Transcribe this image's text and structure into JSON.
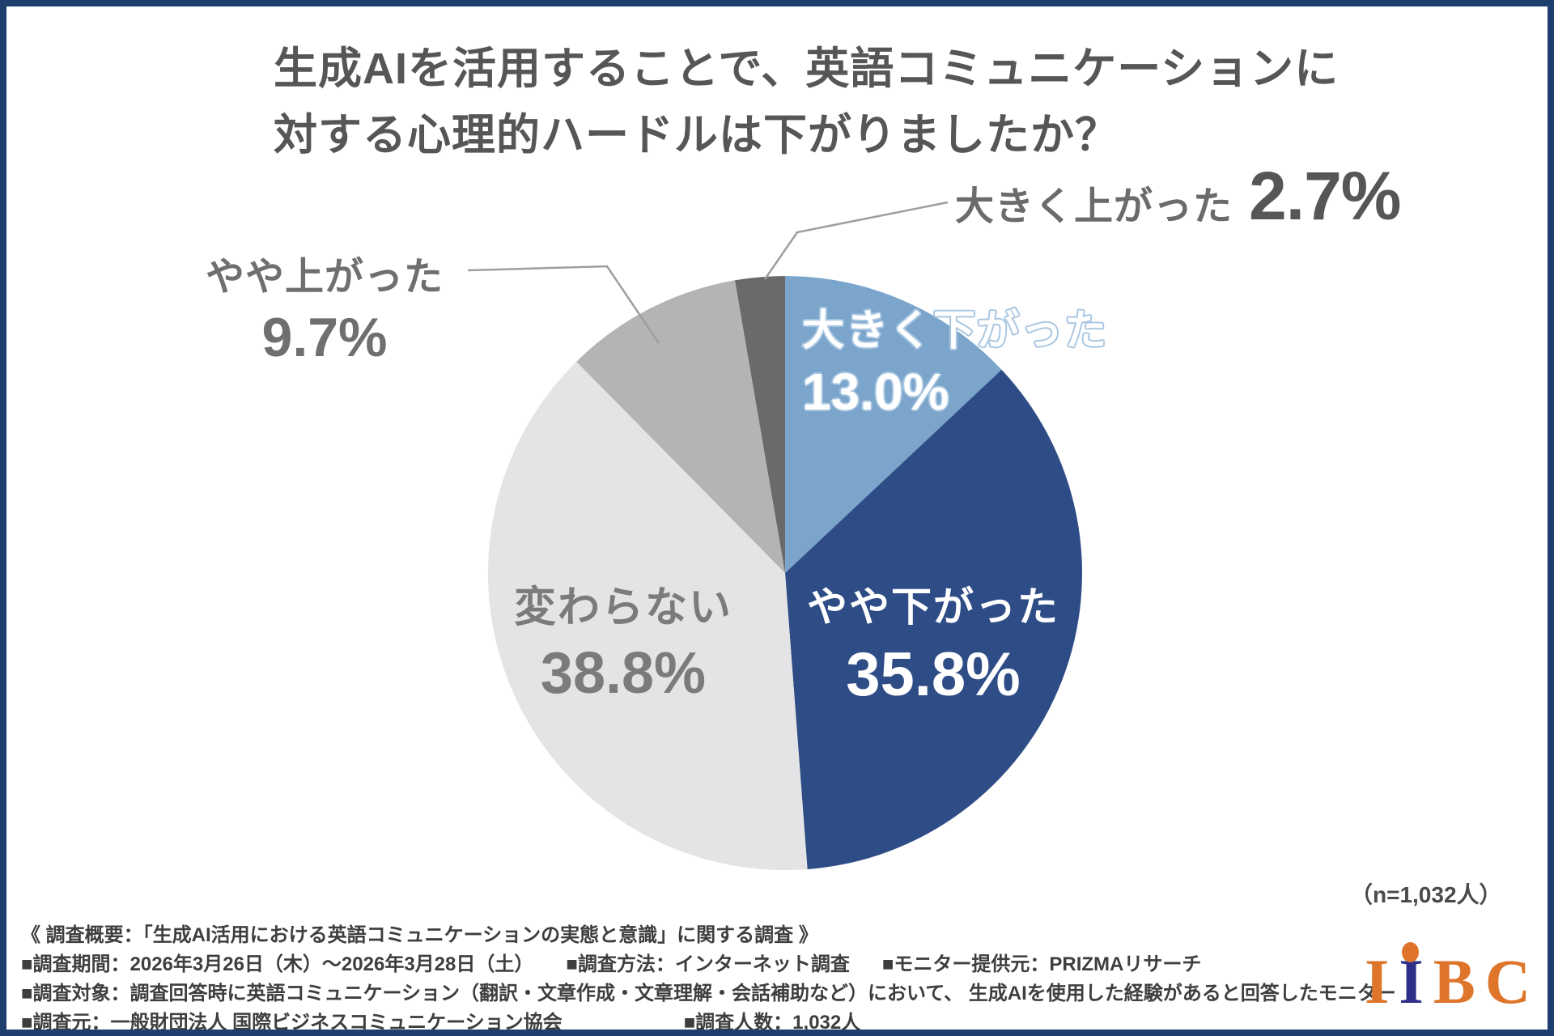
{
  "title": {
    "line1": "生成AIを活用することで、英語コミュニケーションに",
    "line2": "対する心理的ハードルは下がりましたか？"
  },
  "chart_data": {
    "type": "pie",
    "title": "生成AIを活用することで、英語コミュニケーションに対する心理的ハードルは下がりましたか？",
    "sample_note": "（n=1,032人）",
    "start_angle_deg": 0,
    "direction": "clockwise",
    "slices": [
      {
        "label": "大きく下がった",
        "value": 13.0,
        "display": "13.0%",
        "color": "#7BA5CB"
      },
      {
        "label": "やや下がった",
        "value": 35.8,
        "display": "35.8%",
        "color": "#2E4C86"
      },
      {
        "label": "変わらない",
        "value": 38.8,
        "display": "38.8%",
        "color": "#E4E4E6"
      },
      {
        "label": "やや上がった",
        "value": 9.7,
        "display": "9.7%",
        "color": "#B4B4B4"
      },
      {
        "label": "大きく上がった",
        "value": 2.7,
        "display": "2.7%",
        "color": "#6A6A6A"
      }
    ]
  },
  "footer": {
    "line1": "《 調査概要：「生成AI活用における英語コミュニケーションの実態と意識」に関する調査 》",
    "line2": [
      "■調査期間：2026年3月26日（木）～2026年3月28日（土）",
      "■調査方法：インターネット調査",
      "■モニター提供元：PRIZMAリサーチ"
    ],
    "line3": "■調査対象：調査回答時に英語コミュニケーション（翻訳・文章作成・文章理解・会話補助など）において、 生成AIを使用した経験があると回答したモニター",
    "line4": [
      "■調査元：一般財団法人 国際ビジネスコミュニケーション協会",
      "■調査人数：1,032人"
    ]
  },
  "logo": {
    "letters": [
      {
        "char": "I",
        "color": "#DE752B"
      },
      {
        "char": "I",
        "color": "#2D2E87"
      },
      {
        "char": "B",
        "color": "#DE752B"
      },
      {
        "char": "C",
        "color": "#DE752B"
      }
    ],
    "dot_color": "#DE752B"
  },
  "colors": {
    "border": "#1E3E6E",
    "title_text": "#565656",
    "footer_text": "#3e3e3e",
    "callout_line": "#9e9e9e"
  }
}
